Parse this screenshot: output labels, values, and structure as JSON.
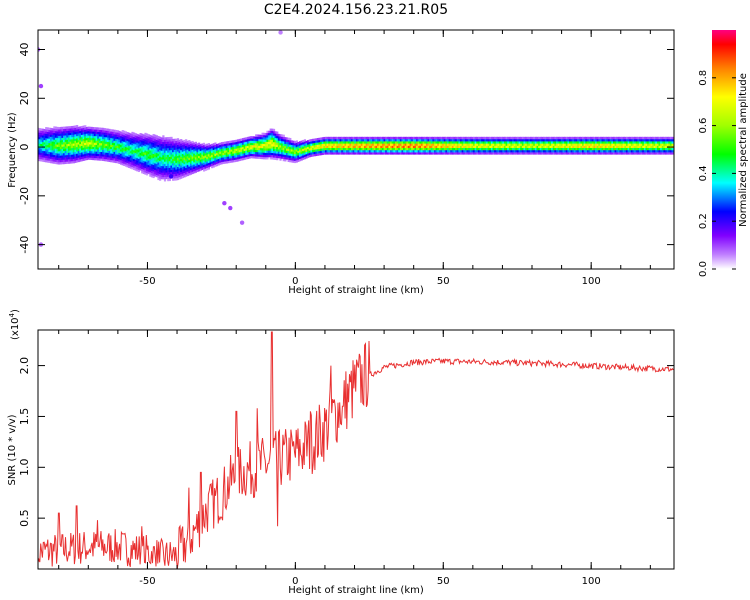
{
  "title": "C2E4.2024.156.23.21.R05",
  "chart_data": [
    {
      "type": "heatmap",
      "xlabel": "Height of straight line (km)",
      "ylabel": "Frequency (Hz)",
      "xlim": [
        -87,
        128
      ],
      "ylim": [
        -50,
        48
      ],
      "x_ticks": [
        "-50",
        "0",
        "50",
        "100"
      ],
      "x_tick_values": [
        -50,
        0,
        50,
        100
      ],
      "y_ticks": [
        "40",
        "20",
        "0",
        "-20",
        "-40"
      ],
      "y_tick_values": [
        40,
        20,
        0,
        -20,
        -40
      ],
      "colorbar": {
        "label": "Normalized spectral amplitude",
        "range": [
          0,
          1
        ],
        "ticks": [
          "0.0",
          "0.2",
          "0.4",
          "0.6",
          "0.8"
        ],
        "tick_values": [
          0.0,
          0.2,
          0.4,
          0.6,
          0.8
        ]
      },
      "ridge": {
        "x": [
          -87,
          -80,
          -75,
          -70,
          -65,
          -60,
          -55,
          -50,
          -45,
          -40,
          -35,
          -30,
          -25,
          -20,
          -15,
          -10,
          -8,
          -5,
          0,
          5,
          10,
          20,
          40,
          60,
          80,
          100,
          128
        ],
        "y": [
          1,
          0.5,
          1,
          1.5,
          1,
          0,
          -1.5,
          -3,
          -4.5,
          -5,
          -4.5,
          -4,
          -2.5,
          -1.5,
          0,
          0.5,
          1.5,
          0,
          -2,
          -0.5,
          0.5,
          0.5,
          0.5,
          0.5,
          0.5,
          0.5,
          0.5
        ],
        "width": [
          8,
          9,
          9,
          8,
          8,
          8,
          9,
          10,
          11,
          10,
          8,
          6,
          5,
          5,
          5,
          6,
          7,
          6,
          5,
          4,
          4,
          4,
          4,
          4,
          4,
          4,
          4
        ],
        "amplitude": [
          0.4,
          0.55,
          0.6,
          0.65,
          0.55,
          0.5,
          0.45,
          0.5,
          0.45,
          0.5,
          0.55,
          0.6,
          0.6,
          0.65,
          0.7,
          0.7,
          0.75,
          0.6,
          0.6,
          0.7,
          0.8,
          0.85,
          0.9,
          0.75,
          0.7,
          0.8,
          0.7
        ]
      },
      "scatter_points": [
        {
          "x": -24,
          "y": -23,
          "v": 0.1
        },
        {
          "x": -22,
          "y": -25,
          "v": 0.1
        },
        {
          "x": -18,
          "y": -31,
          "v": 0.08
        },
        {
          "x": -87,
          "y": 40,
          "v": 0.08
        },
        {
          "x": -86,
          "y": 25,
          "v": 0.1
        },
        {
          "x": -86,
          "y": -40,
          "v": 0.08
        },
        {
          "x": -5,
          "y": 47,
          "v": 0.06
        },
        {
          "x": -42,
          "y": -12,
          "v": 0.2
        }
      ]
    },
    {
      "type": "line",
      "xlabel": "Height of straight line (km)",
      "ylabel": "SNR (10 * v/v)",
      "y_scale_label": "(x10",
      "y_scale_exp": "4",
      "y_scale_close": ")",
      "xlim": [
        -87,
        128
      ],
      "ylim": [
        0.0,
        2.35
      ],
      "x_ticks": [
        "-50",
        "0",
        "50",
        "100"
      ],
      "x_tick_values": [
        -50,
        0,
        50,
        100
      ],
      "y_ticks": [
        "0.5",
        "1.0",
        "1.5",
        "2.0"
      ],
      "y_tick_values": [
        0.5,
        1.0,
        1.5,
        2.0
      ],
      "color": "#e83030",
      "trend": {
        "x": [
          -87,
          -70,
          -60,
          -50,
          -45,
          -40,
          -35,
          -30,
          -25,
          -20,
          -15,
          -10,
          -5,
          0,
          5,
          10,
          15,
          20,
          25,
          30,
          40,
          50,
          70,
          90,
          110,
          128
        ],
        "y": [
          0.15,
          0.2,
          0.2,
          0.15,
          0.1,
          0.12,
          0.3,
          0.55,
          0.7,
          0.9,
          0.95,
          1.0,
          1.05,
          1.1,
          1.2,
          1.35,
          1.55,
          1.75,
          1.9,
          1.98,
          2.03,
          2.04,
          2.03,
          2.01,
          1.98,
          1.96
        ]
      },
      "spikes": [
        {
          "x": -80,
          "y": 0.55
        },
        {
          "x": -74,
          "y": 0.62
        },
        {
          "x": -67,
          "y": 0.48
        },
        {
          "x": -52,
          "y": 0.42
        },
        {
          "x": -36,
          "y": 0.8
        },
        {
          "x": -32,
          "y": 0.95
        },
        {
          "x": -20,
          "y": 1.55
        },
        {
          "x": -13,
          "y": 1.58
        },
        {
          "x": -8,
          "y": 2.33
        },
        {
          "x": -6,
          "y": 0.42
        },
        {
          "x": 5,
          "y": 1.55
        },
        {
          "x": 12,
          "y": 2.0
        },
        {
          "x": 16,
          "y": 1.6
        }
      ]
    }
  ]
}
